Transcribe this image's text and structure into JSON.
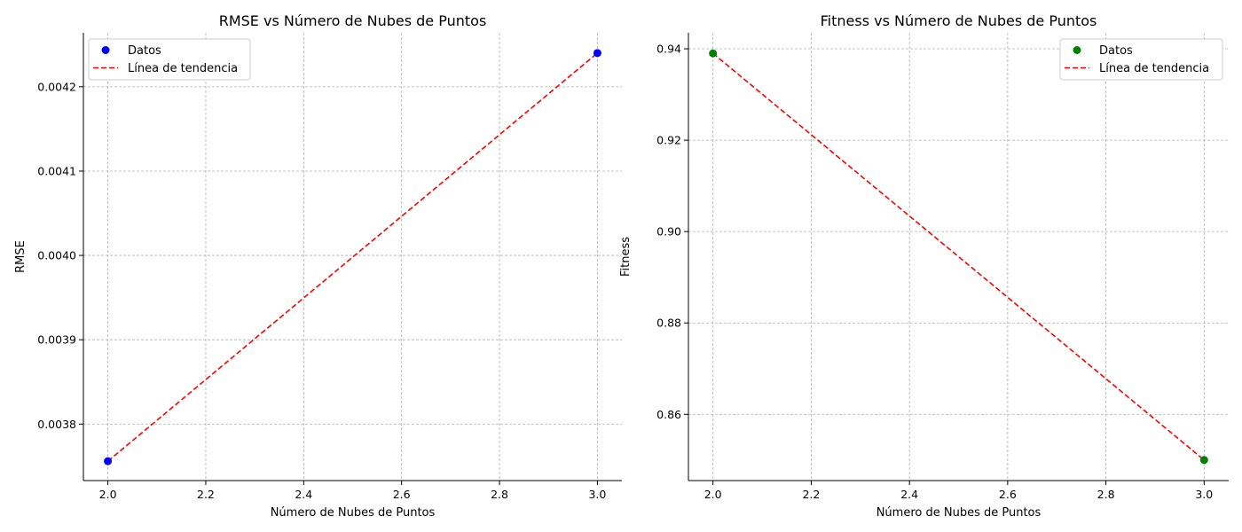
{
  "chart_data": [
    {
      "type": "scatter",
      "title": "RMSE vs Número de Nubes de Puntos",
      "xlabel": "Número de Nubes de Puntos",
      "ylabel": "RMSE",
      "xlim": [
        1.95,
        3.05
      ],
      "ylim": [
        0.003733,
        0.004264
      ],
      "xticks": [
        2.0,
        2.2,
        2.4,
        2.6,
        2.8,
        3.0
      ],
      "xtick_labels": [
        "2.0",
        "2.2",
        "2.4",
        "2.6",
        "2.8",
        "3.0"
      ],
      "yticks": [
        0.0038,
        0.0039,
        0.004,
        0.0041,
        0.0042
      ],
      "ytick_labels": [
        "0.0038",
        "0.0039",
        "0.0040",
        "0.0041",
        "0.0042"
      ],
      "grid": true,
      "legend_position": "top-left",
      "series": [
        {
          "name": "Datos",
          "kind": "scatter",
          "color": "#0000ff",
          "x": [
            2.0,
            3.0
          ],
          "y": [
            0.003756,
            0.00424
          ]
        },
        {
          "name": "Línea de tendencia",
          "kind": "line",
          "style": "dashed",
          "color": "#ff0000",
          "x": [
            2.0,
            3.0
          ],
          "y": [
            0.003756,
            0.00424
          ]
        }
      ]
    },
    {
      "type": "scatter",
      "title": "Fitness vs Número de Nubes de Puntos",
      "xlabel": "Número de Nubes de Puntos",
      "ylabel": "Fitness",
      "xlim": [
        1.95,
        3.05
      ],
      "ylim": [
        0.8455,
        0.9435
      ],
      "xticks": [
        2.0,
        2.2,
        2.4,
        2.6,
        2.8,
        3.0
      ],
      "xtick_labels": [
        "2.0",
        "2.2",
        "2.4",
        "2.6",
        "2.8",
        "3.0"
      ],
      "yticks": [
        0.86,
        0.88,
        0.9,
        0.92,
        0.94
      ],
      "ytick_labels": [
        "0.86",
        "0.88",
        "0.90",
        "0.92",
        "0.94"
      ],
      "grid": true,
      "legend_position": "top-right",
      "series": [
        {
          "name": "Datos",
          "kind": "scatter",
          "color": "#008000",
          "x": [
            2.0,
            3.0
          ],
          "y": [
            0.939,
            0.85
          ]
        },
        {
          "name": "Línea de tendencia",
          "kind": "line",
          "style": "dashed",
          "color": "#ff0000",
          "x": [
            2.0,
            3.0
          ],
          "y": [
            0.939,
            0.85
          ]
        }
      ]
    }
  ]
}
